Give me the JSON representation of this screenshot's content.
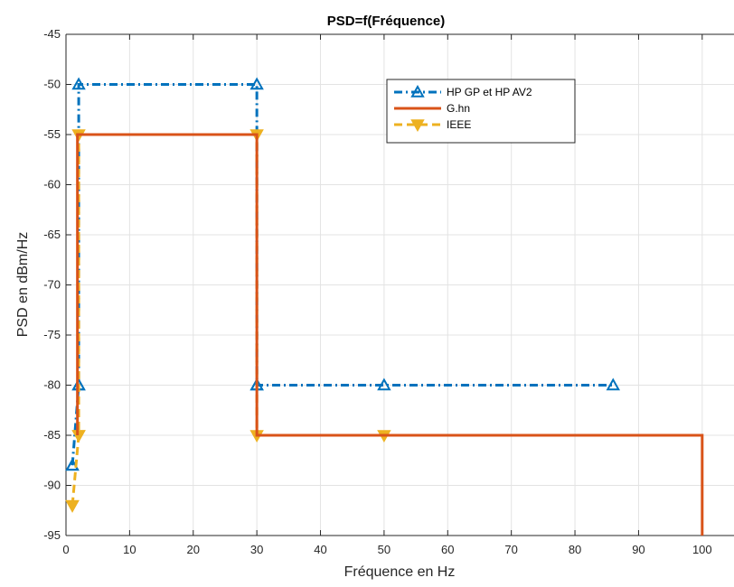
{
  "chart_data": {
    "type": "line",
    "title": "PSD=f(Fréquence)",
    "xlabel": "Fréquence en Hz",
    "ylabel": "PSD en dBm/Hz",
    "xlim": [
      0,
      105
    ],
    "ylim": [
      -95,
      -45
    ],
    "xticks": [
      0,
      10,
      20,
      30,
      40,
      50,
      60,
      70,
      80,
      90,
      100
    ],
    "yticks": [
      -45,
      -50,
      -55,
      -60,
      -65,
      -70,
      -75,
      -80,
      -85,
      -90,
      -95
    ],
    "grid": true,
    "legend_position": "top-right",
    "series": [
      {
        "name": "HP GP et HP AV2",
        "color": "#0072BD",
        "line_style": "dash-dot",
        "marker": "triangle-up",
        "x": [
          1,
          1,
          2,
          2,
          2,
          30,
          30,
          30,
          50,
          86
        ],
        "y": [
          -88,
          -88,
          -80,
          -80,
          -50,
          -50,
          -80,
          -80,
          -80,
          -80
        ]
      },
      {
        "name": "G.hn",
        "color": "#D95319",
        "line_style": "solid",
        "marker": "none",
        "x": [
          1.8,
          1.8,
          30,
          30,
          100,
          100
        ],
        "y": [
          -85,
          -55,
          -55,
          -85,
          -85,
          -95
        ]
      },
      {
        "name": "IEEE",
        "color": "#EDB120",
        "line_style": "dashed",
        "marker": "triangle-down",
        "x": [
          1,
          1,
          2,
          2,
          2,
          30,
          30,
          50
        ],
        "y": [
          -92,
          -92,
          -85,
          -85,
          -55,
          -55,
          -85,
          -85
        ]
      }
    ]
  }
}
